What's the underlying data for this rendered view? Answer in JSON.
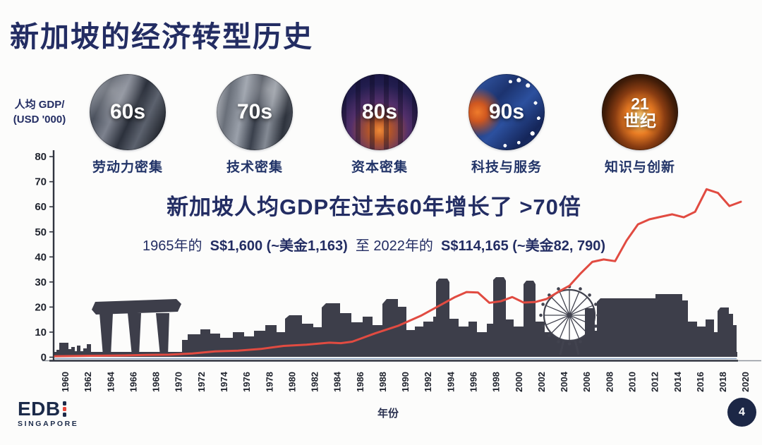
{
  "slide": {
    "title": "新加坡的经济转型历史",
    "page_number": "4",
    "logo": {
      "name": "EDB",
      "country": "SINGAPORE"
    }
  },
  "eras": [
    {
      "decade": "60s",
      "label": "劳动力密集"
    },
    {
      "decade": "70s",
      "label": "技术密集"
    },
    {
      "decade": "80s",
      "label": "资本密集"
    },
    {
      "decade": "90s",
      "label": "科技与服务"
    },
    {
      "decade_lines": [
        "21",
        "世纪"
      ],
      "label": "知识与创新"
    }
  ],
  "callout": {
    "headline": "新加坡人均GDP在过去60年增长了 >70倍",
    "detail": {
      "prefix": "1965年的",
      "value1": "S$1,600 (~美金1,163)",
      "middle": "至 2022年的",
      "value2": "S$114,165 (~美金82, 790)"
    }
  },
  "chart_data": {
    "type": "line",
    "title": "",
    "y_axis_title_line1": "人均 GDP/",
    "y_axis_title_line2": "(USD '000)",
    "x_axis_title": "年份",
    "ylim": [
      0,
      80
    ],
    "yticks": [
      0,
      10,
      20,
      30,
      40,
      50,
      60,
      70,
      80
    ],
    "xticks": [
      1960,
      1962,
      1964,
      1966,
      1968,
      1970,
      1972,
      1974,
      1976,
      1978,
      1980,
      1982,
      1984,
      1986,
      1988,
      1990,
      1992,
      1994,
      1996,
      1998,
      2000,
      2002,
      2004,
      2006,
      2008,
      2010,
      2012,
      2014,
      2016,
      2018,
      2020
    ],
    "grid": false,
    "legend": "none",
    "series": [
      {
        "name": "新加坡人均GDP (USD '000)",
        "color": "#e14b41",
        "x": [
          1960,
          1962,
          1964,
          1966,
          1968,
          1970,
          1972,
          1974,
          1976,
          1978,
          1980,
          1982,
          1984,
          1985,
          1986,
          1988,
          1990,
          1992,
          1994,
          1995,
          1996,
          1997,
          1998,
          1999,
          2000,
          2001,
          2002,
          2003,
          2004,
          2005,
          2006,
          2007,
          2008,
          2009,
          2010,
          2011,
          2012,
          2013,
          2014,
          2015,
          2016,
          2017,
          2018,
          2019,
          2020
        ],
        "values": [
          0.4,
          0.5,
          0.6,
          0.7,
          0.9,
          1.0,
          1.5,
          2.3,
          2.6,
          3.3,
          4.5,
          5.0,
          5.8,
          5.6,
          6.2,
          9.5,
          12.5,
          16.5,
          21.5,
          24.0,
          26.0,
          25.8,
          21.7,
          22.3,
          24.0,
          21.8,
          22.0,
          23.2,
          26.0,
          28.5,
          33.5,
          38.0,
          39.0,
          38.3,
          46.5,
          53.0,
          55.0,
          56.0,
          57.0,
          55.8,
          58.0,
          67.0,
          65.5,
          60.3,
          62.0
        ]
      }
    ]
  }
}
